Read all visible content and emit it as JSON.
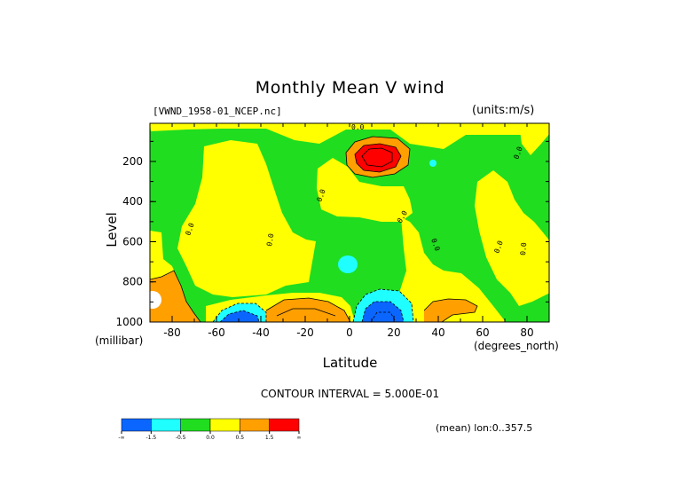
{
  "chart_data": {
    "type": "filled-contour",
    "title": "Monthly Mean V wind",
    "dataset": "[VWND_1958-01_NCEP.nc]",
    "units": "(units:m/s)",
    "xlabel": "Latitude",
    "x_unit": "(degrees_north)",
    "ylabel": "Level",
    "y_unit": "(millibar)",
    "xlim": [
      -90,
      90
    ],
    "ylim": [
      1000,
      10
    ],
    "x_ticks": [
      -80,
      -60,
      -40,
      -20,
      0,
      20,
      40,
      60,
      80
    ],
    "x_tick_labels": [
      "-80",
      "-60",
      "-40",
      "-20",
      "0",
      "20",
      "40",
      "60",
      "80"
    ],
    "y_ticks": [
      200,
      400,
      600,
      800,
      1000
    ],
    "y_tick_labels": [
      "200",
      "400",
      "600",
      "800",
      "1000"
    ],
    "contour_interval_text": "CONTOUR INTERVAL = 5.000E-01",
    "subset_text": "(mean) lon:0..357.5",
    "contour_line_labels": [
      "0.0",
      "0.0",
      "0.0",
      "0.0",
      "0.0",
      "0.0",
      "0.0",
      "0.0",
      "0.0"
    ],
    "legend": {
      "bins": [
        {
          "color": "#0a66ff"
        },
        {
          "color": "#20ffff"
        },
        {
          "color": "#20dd20"
        },
        {
          "color": "#ffff00"
        },
        {
          "color": "#ff9f00"
        },
        {
          "color": "#ff0000"
        }
      ],
      "labels": [
        "-∞",
        "-1.5",
        "-0.5",
        "0.0",
        "0.5",
        "1.5",
        "∞"
      ]
    },
    "features": [
      {
        "label": "max",
        "lat": 13,
        "level": 150,
        "value": 1.5
      },
      {
        "label": "min",
        "lat": 12,
        "level": 960,
        "value": -1.5
      },
      {
        "label": "min",
        "lat": -50,
        "level": 990,
        "value": -1.5
      },
      {
        "label": "max",
        "lat": -30,
        "level": 980,
        "value": 1.0
      },
      {
        "label": "max",
        "lat": -88,
        "level": 920,
        "value": 1.0
      },
      {
        "label": "max",
        "lat": 50,
        "level": 960,
        "value": 1.0
      }
    ]
  }
}
